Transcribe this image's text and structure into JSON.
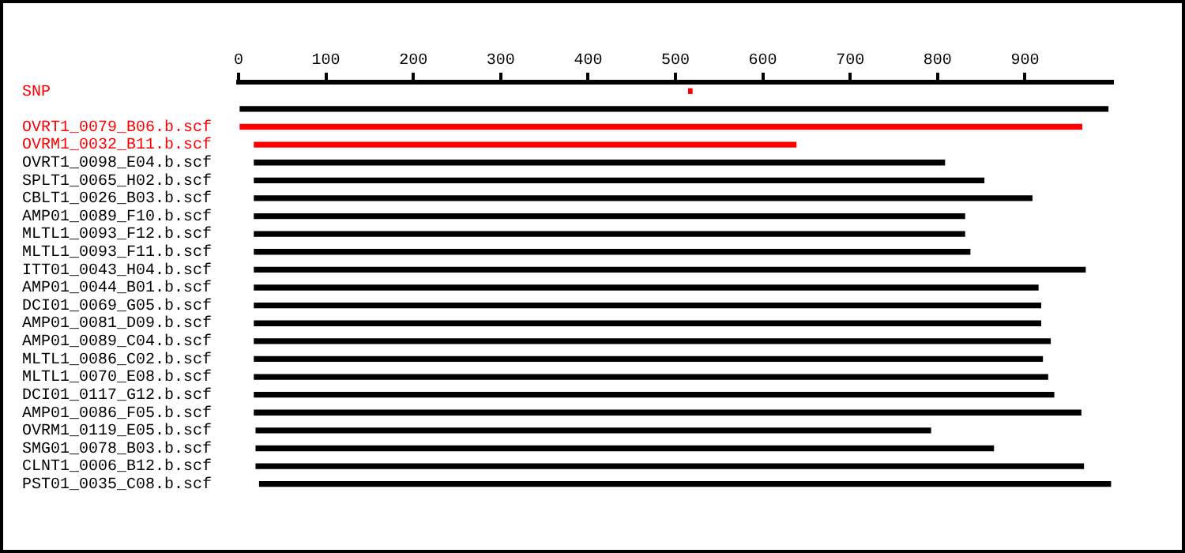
{
  "chart_data": {
    "type": "bar",
    "orientation": "horizontal",
    "categories": [
      "SNP",
      null,
      "OVRT1_0079_B06.b.scf",
      "OVRM1_0032_B11.b.scf",
      "OVRT1_0098_E04.b.scf",
      "SPLT1_0065_H02.b.scf",
      "CBLT1_0026_B03.b.scf",
      "AMP01_0089_F10.b.scf",
      "MLTL1_0093_F12.b.scf",
      "MLTL1_0093_F11.b.scf",
      "ITT01_0043_H04.b.scf",
      "AMP01_0044_B01.b.scf",
      "DCI01_0069_G05.b.scf",
      "AMP01_0081_D09.b.scf",
      "AMP01_0089_C04.b.scf",
      "MLTL1_0086_C02.b.scf",
      "MLTL1_0070_E08.b.scf",
      "DCI01_0117_G12.b.scf",
      "AMP01_0086_F05.b.scf",
      "OVRM1_0119_E05.b.scf",
      "SMG01_0078_B03.b.scf",
      "CLNT1_0006_B12.b.scf",
      "PST01_0035_C08.b.scf"
    ],
    "base": [
      515,
      0,
      0,
      18,
      18,
      18,
      18,
      18,
      18,
      18,
      18,
      18,
      18,
      18,
      18,
      18,
      18,
      18,
      18,
      20,
      20,
      20,
      24
    ],
    "values": [
      4,
      995,
      965,
      620,
      790,
      835,
      890,
      813,
      813,
      819,
      951,
      897,
      900,
      900,
      911,
      902,
      908,
      915,
      946,
      772,
      844,
      947,
      974
    ],
    "colors": [
      "#ff0000",
      "#000000",
      "#ff0000",
      "#ff0000",
      "#000000",
      "#000000",
      "#000000",
      "#000000",
      "#000000",
      "#000000",
      "#000000",
      "#000000",
      "#000000",
      "#000000",
      "#000000",
      "#000000",
      "#000000",
      "#000000",
      "#000000",
      "#000000",
      "#000000",
      "#000000",
      "#000000"
    ],
    "xlim": [
      0,
      1000
    ],
    "xticks": [
      0,
      100,
      200,
      300,
      400,
      500,
      600,
      700,
      800,
      900
    ],
    "grid": false,
    "legend": false
  }
}
